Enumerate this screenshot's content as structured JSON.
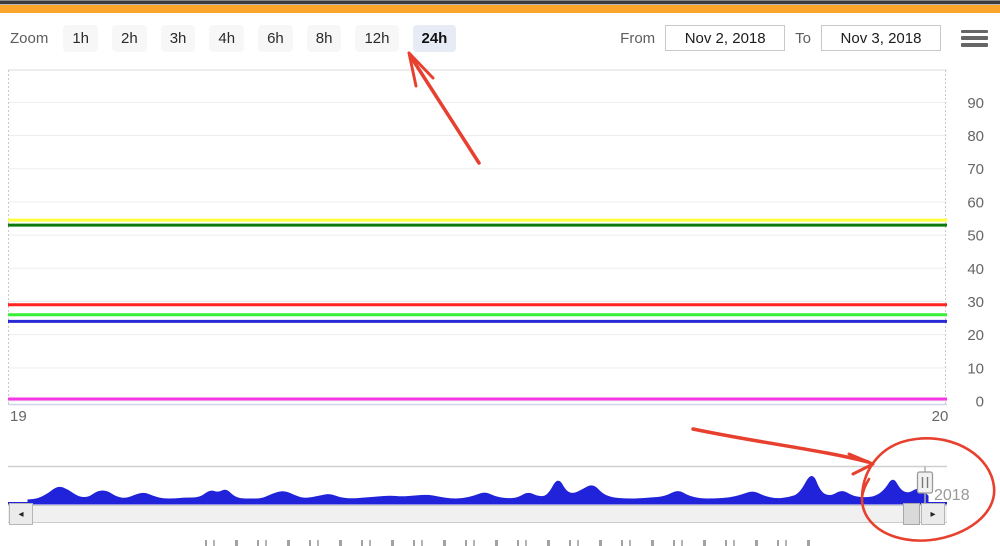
{
  "toolbar": {
    "zoom_label": "Zoom",
    "zoom_buttons": [
      {
        "label": "1h",
        "selected": false
      },
      {
        "label": "2h",
        "selected": false
      },
      {
        "label": "3h",
        "selected": false
      },
      {
        "label": "4h",
        "selected": false
      },
      {
        "label": "6h",
        "selected": false
      },
      {
        "label": "8h",
        "selected": false
      },
      {
        "label": "12h",
        "selected": false
      },
      {
        "label": "24h",
        "selected": true
      }
    ],
    "from_label": "From",
    "from_value": "Nov 2, 2018",
    "to_label": "To",
    "to_value": "Nov 3, 2018",
    "menu_icon": "hamburger-icon"
  },
  "chart_data": [
    {
      "type": "line",
      "title": "",
      "xlabel": "",
      "ylabel": "",
      "x_ticks": [
        "19",
        "20"
      ],
      "y_ticks": [
        0,
        10,
        20,
        30,
        40,
        50,
        60,
        70,
        80,
        90
      ],
      "ylim": [
        0,
        100
      ],
      "xlim": [
        19,
        20
      ],
      "grid": true,
      "legend": "none",
      "series": [
        {
          "name": "yellow-threshold-line",
          "color": "#ffff3b",
          "value": 54.5
        },
        {
          "name": "dark-green-threshold-line",
          "color": "#0b7a0b",
          "value": 53
        },
        {
          "name": "red-threshold-line",
          "color": "#ff2424",
          "value": 29
        },
        {
          "name": "bright-green-threshold-line",
          "color": "#35f035",
          "value": 26
        },
        {
          "name": "blue-threshold-line",
          "color": "#2a2ad4",
          "value": 24
        },
        {
          "name": "magenta-threshold-line",
          "color": "#f637e3",
          "value": 0.6
        }
      ]
    },
    {
      "type": "area",
      "name": "navigator-mini-chart",
      "color": "#2023d9",
      "year_label": "2018",
      "points_x_height": [
        [
          28,
          2
        ],
        [
          38,
          3
        ],
        [
          48,
          8
        ],
        [
          58,
          16
        ],
        [
          68,
          12
        ],
        [
          78,
          5
        ],
        [
          88,
          4
        ],
        [
          98,
          11
        ],
        [
          107,
          11
        ],
        [
          116,
          5
        ],
        [
          126,
          3
        ],
        [
          138,
          8
        ],
        [
          145,
          9
        ],
        [
          152,
          6
        ],
        [
          162,
          3
        ],
        [
          175,
          3
        ],
        [
          185,
          4
        ],
        [
          200,
          4
        ],
        [
          210,
          12
        ],
        [
          218,
          9
        ],
        [
          226,
          13
        ],
        [
          233,
          6
        ],
        [
          240,
          3
        ],
        [
          252,
          3
        ],
        [
          262,
          3
        ],
        [
          275,
          9
        ],
        [
          285,
          11
        ],
        [
          295,
          6
        ],
        [
          305,
          3
        ],
        [
          320,
          6
        ],
        [
          330,
          8
        ],
        [
          340,
          4
        ],
        [
          352,
          3
        ],
        [
          365,
          4
        ],
        [
          378,
          5
        ],
        [
          390,
          6
        ],
        [
          402,
          5
        ],
        [
          415,
          6
        ],
        [
          428,
          7
        ],
        [
          438,
          5
        ],
        [
          450,
          3
        ],
        [
          462,
          3
        ],
        [
          475,
          6
        ],
        [
          485,
          10
        ],
        [
          495,
          5
        ],
        [
          508,
          3
        ],
        [
          518,
          4
        ],
        [
          528,
          10
        ],
        [
          538,
          5
        ],
        [
          548,
          6
        ],
        [
          558,
          25
        ],
        [
          566,
          10
        ],
        [
          574,
          8
        ],
        [
          582,
          12
        ],
        [
          593,
          18
        ],
        [
          602,
          8
        ],
        [
          612,
          4
        ],
        [
          625,
          3
        ],
        [
          638,
          3
        ],
        [
          650,
          4
        ],
        [
          665,
          5
        ],
        [
          678,
          12
        ],
        [
          688,
          6
        ],
        [
          700,
          3
        ],
        [
          715,
          3
        ],
        [
          730,
          4
        ],
        [
          742,
          7
        ],
        [
          753,
          11
        ],
        [
          763,
          6
        ],
        [
          775,
          3
        ],
        [
          788,
          4
        ],
        [
          800,
          8
        ],
        [
          812,
          31
        ],
        [
          820,
          10
        ],
        [
          830,
          5
        ],
        [
          842,
          12
        ],
        [
          852,
          6
        ],
        [
          862,
          4
        ],
        [
          875,
          5
        ],
        [
          885,
          12
        ],
        [
          893,
          25
        ],
        [
          900,
          12
        ],
        [
          908,
          8
        ],
        [
          918,
          14
        ],
        [
          924,
          10
        ],
        [
          928,
          6
        ]
      ]
    }
  ],
  "scrollbar": {
    "left_arrow": "◂",
    "right_arrow": "▸"
  },
  "annotations": {
    "color": "#e8402e",
    "items": [
      "arrow-to-24h-button",
      "arrow-to-navigator-handle",
      "circle-around-navigator-handle"
    ]
  }
}
